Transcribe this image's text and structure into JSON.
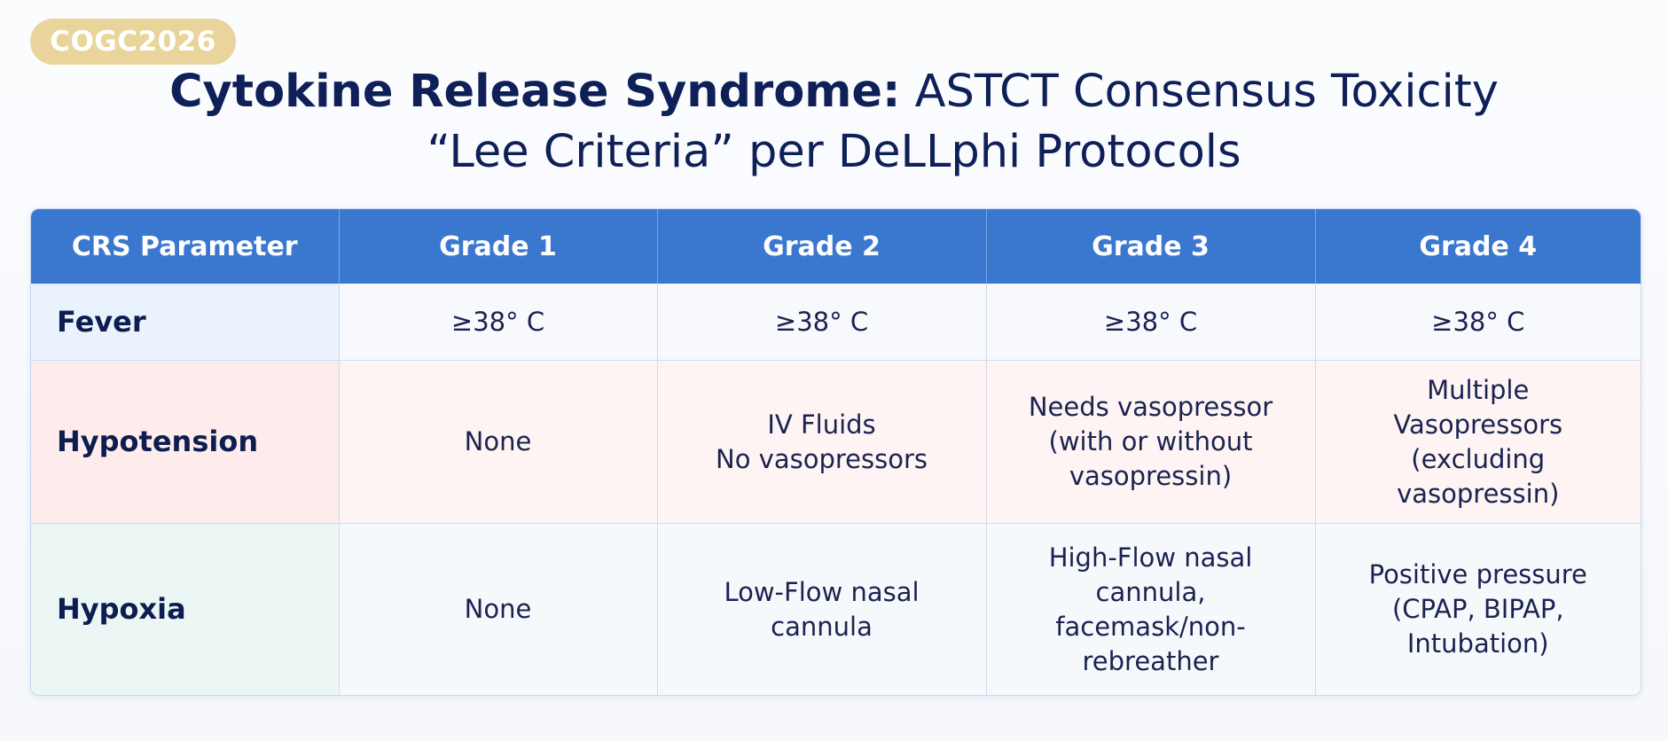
{
  "badge": "COGC2026",
  "title": {
    "bold_part": "Cytokine Release Syndrome:",
    "rest_line1": " ASTCT Consensus Toxicity",
    "line2": "“Lee Criteria” per DeLLphi Protocols"
  },
  "table": {
    "headers": [
      "CRS Parameter",
      "Grade 1",
      "Grade 2",
      "Grade 3",
      "Grade 4"
    ],
    "rows": [
      {
        "parameter": "Fever",
        "cells": [
          [
            "≥38° C"
          ],
          [
            "≥38° C"
          ],
          [
            "≥38° C"
          ],
          [
            "≥38° C"
          ]
        ]
      },
      {
        "parameter": "Hypotension",
        "cells": [
          [
            "None"
          ],
          [
            "IV Fluids",
            "No vasopressors"
          ],
          [
            "Needs vasopressor",
            "(with or without",
            "vasopressin)"
          ],
          [
            "Multiple",
            "Vasopressors",
            "(excluding",
            "vasopressin)"
          ]
        ]
      },
      {
        "parameter": "Hypoxia",
        "cells": [
          [
            "None"
          ],
          [
            "Low-Flow nasal",
            "cannula"
          ],
          [
            "High-Flow nasal",
            "cannula,",
            "facemask/non-",
            "rebreather"
          ],
          [
            "Positive pressure",
            "(CPAP, BIPAP,",
            "Intubation)"
          ]
        ]
      }
    ]
  },
  "colors": {
    "header_blue": "#3a78cf",
    "badge_gold": "#e9d59b",
    "title_navy": "#0f1f57",
    "fever_tint": "#eaf3fd",
    "hypotension_tint": "#fdeceb",
    "hypoxia_tint": "#ebf6f5"
  }
}
